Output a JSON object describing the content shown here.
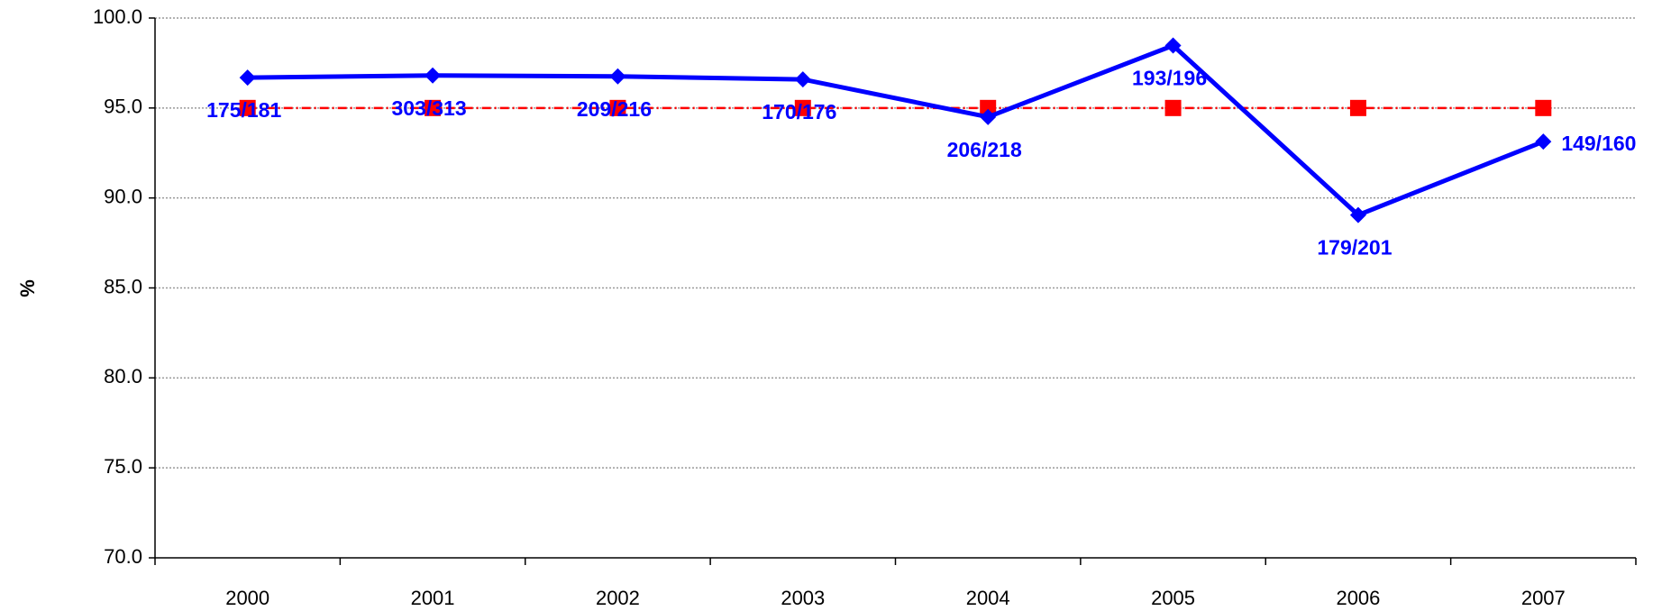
{
  "chart_data": {
    "type": "line",
    "ylabel": "%",
    "categories": [
      "2000",
      "2001",
      "2002",
      "2003",
      "2004",
      "2005",
      "2006",
      "2007"
    ],
    "series": [
      {
        "color": "#0000ff",
        "marker": "diamond",
        "line": "solid",
        "values": [
          96.69,
          96.81,
          96.76,
          96.59,
          94.5,
          98.47,
          89.05,
          93.13
        ],
        "value_labels": [
          "175/181",
          "303/313",
          "209/216",
          "170/176",
          "206/218",
          "193/196",
          "179/201",
          "149/160"
        ]
      },
      {
        "color": "#ff0000",
        "marker": "square",
        "line": "dashdot",
        "values": [
          95,
          95,
          95,
          95,
          95,
          95,
          95,
          95
        ]
      }
    ],
    "ylim": [
      70,
      100
    ],
    "yticks": [
      {
        "value": 70,
        "label": "70.0"
      },
      {
        "value": 75,
        "label": "75.0"
      },
      {
        "value": 80,
        "label": "80.0"
      },
      {
        "value": 85,
        "label": "85.0"
      },
      {
        "value": 90,
        "label": "90.0"
      },
      {
        "value": 95,
        "label": "95.0"
      },
      {
        "value": 100,
        "label": "100.0"
      }
    ],
    "grid": true
  }
}
